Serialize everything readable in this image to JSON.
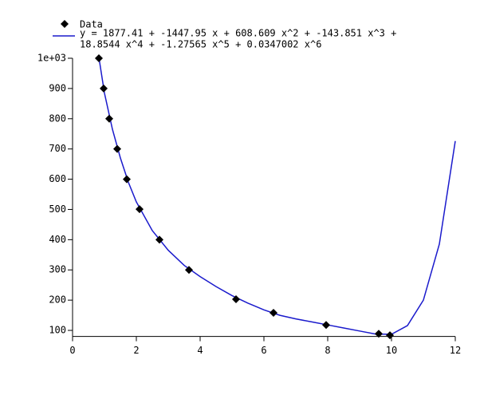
{
  "chart_data": {
    "type": "scatter",
    "series": [
      {
        "name": "Data",
        "type": "scatter",
        "color": "#000000",
        "x": [
          0.825,
          0.975,
          1.15,
          1.4,
          1.7,
          2.1,
          2.725,
          3.65,
          5.125,
          6.3,
          7.95,
          9.6,
          9.95
        ],
        "values": [
          1000,
          900,
          800,
          700,
          600,
          501,
          400,
          300,
          203,
          158,
          118,
          89,
          84
        ]
      },
      {
        "name": [
          "y = 1877.41 + -1447.95 x + 608.609 x^2 + -143.851 x^3 +",
          "18.8544 x^4 + -1.27565 x^5 + 0.0347002 x^6"
        ],
        "type": "line",
        "color": "#1a1acc",
        "x": [
          0.83,
          1,
          1.25,
          1.5,
          1.75,
          2,
          2.5,
          3,
          3.5,
          4,
          4.5,
          5,
          5.5,
          6,
          6.5,
          7,
          7.5,
          8,
          8.5,
          9,
          9.5,
          10,
          10.5,
          11,
          11.5,
          12
        ],
        "values": [
          1000,
          885,
          765,
          670,
          590,
          525,
          430,
          365,
          315,
          278,
          245,
          215,
          190,
          168,
          150,
          138,
          128,
          118,
          108,
          98,
          88,
          87,
          116,
          200,
          385,
          726
        ]
      }
    ],
    "xlim": [
      0,
      12
    ],
    "ylim": [
      80,
      1000
    ],
    "xticks": [
      0,
      2,
      4,
      6,
      8,
      10,
      12
    ],
    "yticks": [
      100,
      200,
      300,
      400,
      500,
      600,
      700,
      800,
      900,
      {
        "value": 1000,
        "label": "1e+03"
      }
    ]
  }
}
